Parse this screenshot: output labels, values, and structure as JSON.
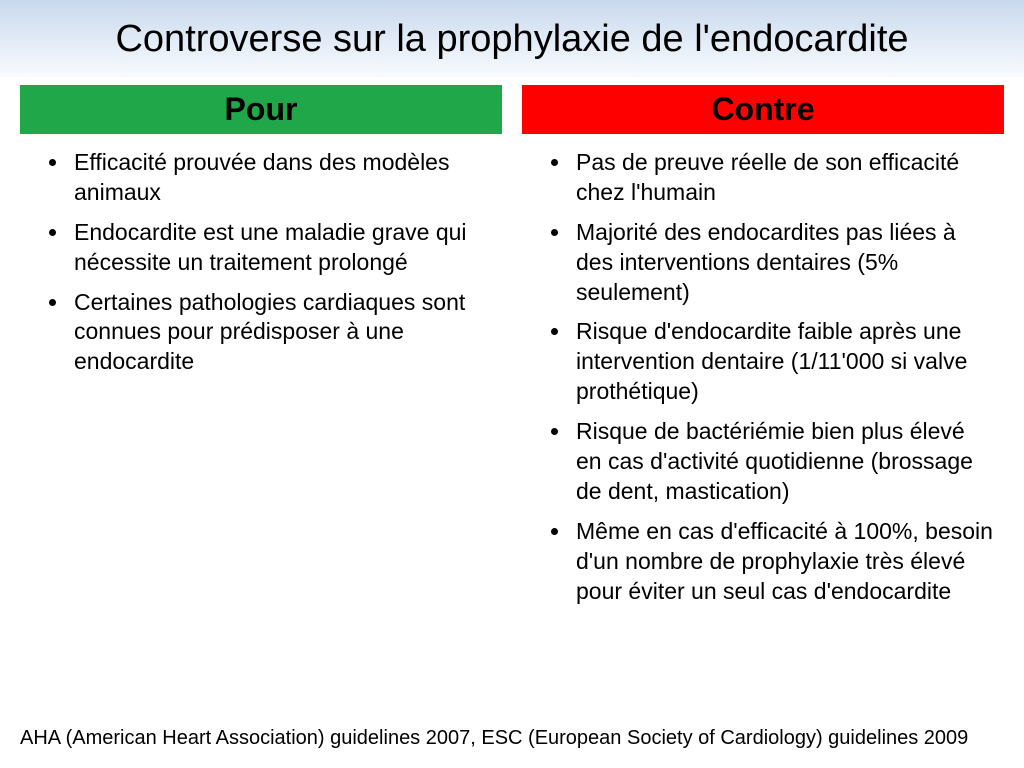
{
  "title": "Controverse sur la prophylaxie de l'endocardite",
  "title_bg_gradient": {
    "from": "#c9d9ee",
    "to": "#f8fbfe"
  },
  "left": {
    "header": "Pour",
    "header_bg": "#1fa74a",
    "items": [
      "Efficacité prouvée dans des modèles animaux",
      "Endocardite est une maladie grave qui nécessite un traitement prolongé",
      "Certaines pathologies cardiaques sont connues pour prédisposer à une endocardite"
    ]
  },
  "right": {
    "header": "Contre",
    "header_bg": "#ff0000",
    "items": [
      "Pas de preuve réelle de son efficacité chez l'humain",
      "Majorité des endocardites pas liées à des interventions dentaires (5% seulement)",
      "Risque d'endocardite faible après une intervention dentaire (1/11'000 si valve prothétique)",
      "Risque de bactériémie bien plus élevé en cas d'activité quotidienne (brossage de dent, mastication)",
      "Même en cas d'efficacité à 100%, besoin d'un nombre de prophylaxie très élevé pour éviter un seul cas d'endocardite"
    ]
  },
  "footer": "AHA (American Heart Association) guidelines 2007, ESC (European Society of Cardiology) guidelines 2009"
}
